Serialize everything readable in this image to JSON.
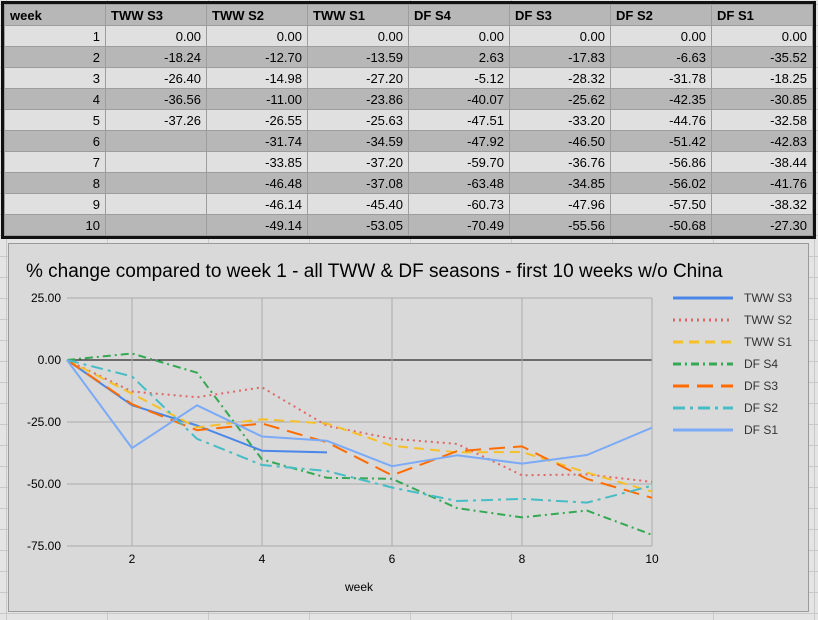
{
  "table": {
    "headers": [
      "week",
      "TWW S3",
      "TWW S2",
      "TWW S1",
      "DF S4",
      "DF S3",
      "DF S2",
      "DF S1"
    ],
    "rows": [
      [
        "1",
        "0.00",
        "0.00",
        "0.00",
        "0.00",
        "0.00",
        "0.00",
        "0.00"
      ],
      [
        "2",
        "-18.24",
        "-12.70",
        "-13.59",
        "2.63",
        "-17.83",
        "-6.63",
        "-35.52"
      ],
      [
        "3",
        "-26.40",
        "-14.98",
        "-27.20",
        "-5.12",
        "-28.32",
        "-31.78",
        "-18.25"
      ],
      [
        "4",
        "-36.56",
        "-11.00",
        "-23.86",
        "-40.07",
        "-25.62",
        "-42.35",
        "-30.85"
      ],
      [
        "5",
        "-37.26",
        "-26.55",
        "-25.63",
        "-47.51",
        "-33.20",
        "-44.76",
        "-32.58"
      ],
      [
        "6",
        "",
        "-31.74",
        "-34.59",
        "-47.92",
        "-46.50",
        "-51.42",
        "-42.83"
      ],
      [
        "7",
        "",
        "-33.85",
        "-37.20",
        "-59.70",
        "-36.76",
        "-56.86",
        "-38.44"
      ],
      [
        "8",
        "",
        "-46.48",
        "-37.08",
        "-63.48",
        "-34.85",
        "-56.02",
        "-41.76"
      ],
      [
        "9",
        "",
        "-46.14",
        "-45.40",
        "-60.73",
        "-47.96",
        "-57.50",
        "-38.32"
      ],
      [
        "10",
        "",
        "-49.14",
        "-53.05",
        "-70.49",
        "-55.56",
        "-50.68",
        "-27.30"
      ]
    ]
  },
  "chart_data": {
    "type": "line",
    "title": "% change compared to week 1 - all TWW & DF seasons - first 10 weeks w/o China",
    "xlabel": "week",
    "ylabel": "",
    "x": [
      1,
      2,
      3,
      4,
      5,
      6,
      7,
      8,
      9,
      10
    ],
    "xlim": [
      1,
      10
    ],
    "ylim": [
      -75,
      25
    ],
    "x_ticks": [
      "2",
      "4",
      "6",
      "8",
      "10"
    ],
    "x_tick_values": [
      2,
      4,
      6,
      8,
      10
    ],
    "y_ticks": [
      "25.00",
      "0.00",
      "-25.00",
      "-50.00",
      "-75.00"
    ],
    "y_tick_values": [
      25,
      0,
      -25,
      -50,
      -75
    ],
    "grid": true,
    "legend_position": "right",
    "series": [
      {
        "name": "TWW S3",
        "color": "#4a86e8",
        "dash": "solid",
        "values": [
          0,
          -18.24,
          -26.4,
          -36.56,
          -37.26,
          null,
          null,
          null,
          null,
          null
        ]
      },
      {
        "name": "TWW S2",
        "color": "#e06666",
        "dash": "dotted",
        "values": [
          0,
          -12.7,
          -14.98,
          -11.0,
          -26.55,
          -31.74,
          -33.85,
          -46.48,
          -46.14,
          -49.14
        ]
      },
      {
        "name": "TWW S1",
        "color": "#f6c026",
        "dash": "dashed",
        "values": [
          0,
          -13.59,
          -27.2,
          -23.86,
          -25.63,
          -34.59,
          -37.2,
          -37.08,
          -45.4,
          -53.05
        ]
      },
      {
        "name": "DF S4",
        "color": "#34a853",
        "dash": "dashdot",
        "values": [
          0,
          2.63,
          -5.12,
          -40.07,
          -47.51,
          -47.92,
          -59.7,
          -63.48,
          -60.73,
          -70.49
        ]
      },
      {
        "name": "DF S3",
        "color": "#ff6d01",
        "dash": "longdash",
        "values": [
          0,
          -17.83,
          -28.32,
          -25.62,
          -33.2,
          -46.5,
          -36.76,
          -34.85,
          -47.96,
          -55.56
        ]
      },
      {
        "name": "DF S2",
        "color": "#46bdc6",
        "dash": "dashdot2",
        "values": [
          0,
          -6.63,
          -31.78,
          -42.35,
          -44.76,
          -51.42,
          -56.86,
          -56.02,
          -57.5,
          -50.68
        ]
      },
      {
        "name": "DF S1",
        "color": "#7baaf7",
        "dash": "solid",
        "values": [
          0,
          -35.52,
          -18.25,
          -30.85,
          -32.58,
          -42.83,
          -38.44,
          -41.76,
          -38.32,
          -27.3
        ]
      }
    ]
  }
}
